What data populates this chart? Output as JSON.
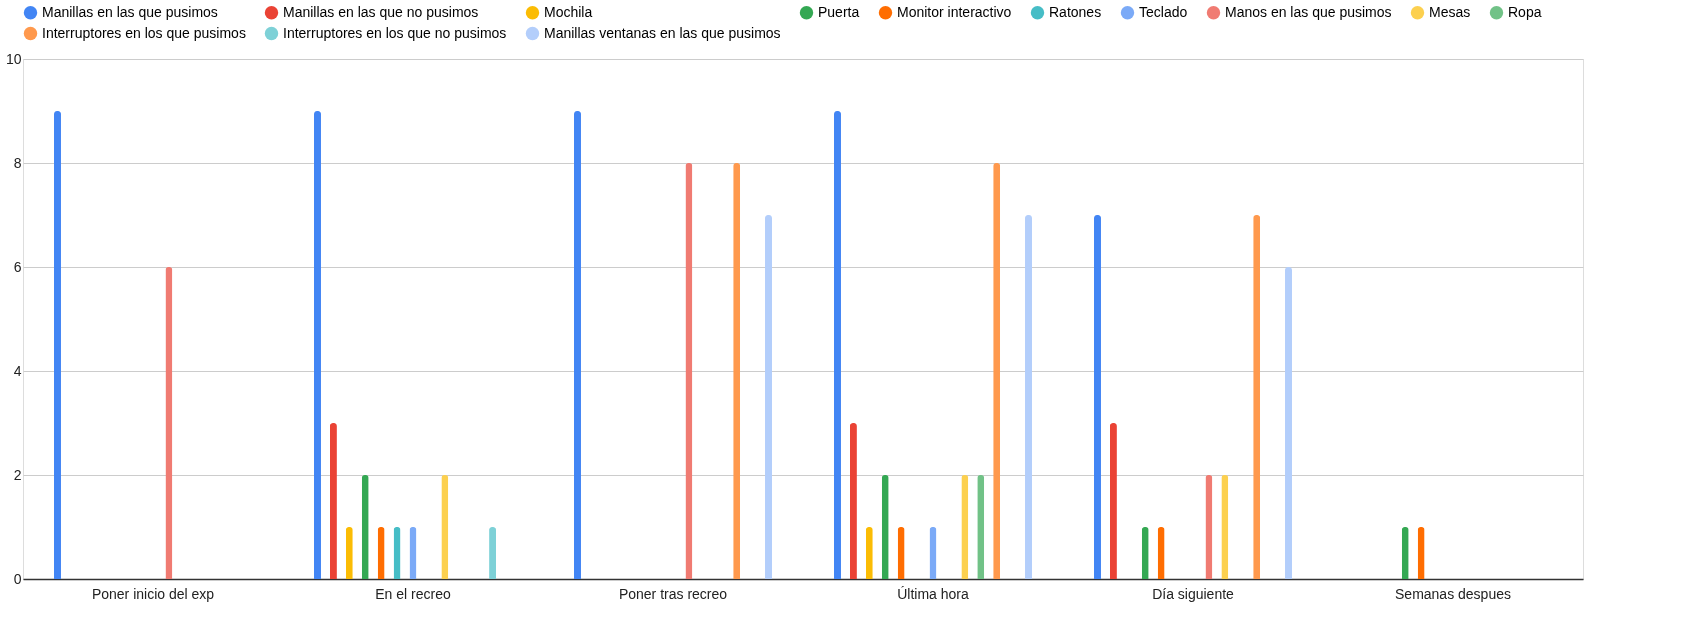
{
  "chart_data": {
    "type": "bar",
    "categories": [
      "Poner inicio del exp",
      "En el recreo",
      "Poner tras recreo",
      "Última hora",
      "Día siguiente",
      "Semanas despues"
    ],
    "series": [
      {
        "name": "Manillas en las que pusimos",
        "color": "#4285f4",
        "values": [
          9,
          9,
          9,
          9,
          7,
          0
        ]
      },
      {
        "name": "Manillas en las que no pusimos",
        "color": "#ea4335",
        "values": [
          0,
          3,
          0,
          3,
          3,
          0
        ]
      },
      {
        "name": "Mochila",
        "color": "#fbbc04",
        "values": [
          0,
          1,
          0,
          1,
          0,
          0
        ]
      },
      {
        "name": "Puerta",
        "color": "#34a853",
        "values": [
          0,
          2,
          0,
          2,
          1,
          1
        ]
      },
      {
        "name": "Monitor interactivo",
        "color": "#ff6d01",
        "values": [
          0,
          1,
          0,
          1,
          1,
          1
        ]
      },
      {
        "name": "Ratones",
        "color": "#46bdc6",
        "values": [
          0,
          1,
          0,
          0,
          0,
          0
        ]
      },
      {
        "name": "Teclado",
        "color": "#7baaf7",
        "values": [
          0,
          1,
          0,
          1,
          0,
          0
        ]
      },
      {
        "name": "Manos en las que pusimos",
        "color": "#f07b72",
        "values": [
          6,
          0,
          8,
          0,
          2,
          0
        ]
      },
      {
        "name": "Mesas",
        "color": "#fcd04f",
        "values": [
          0,
          2,
          0,
          2,
          2,
          0
        ]
      },
      {
        "name": "Ropa",
        "color": "#71c287",
        "values": [
          0,
          0,
          0,
          2,
          0,
          0
        ]
      },
      {
        "name": "Interruptores en los que pusimos",
        "color": "#ff994d",
        "values": [
          0,
          0,
          8,
          8,
          7,
          0
        ]
      },
      {
        "name": "Interruptores en los que no pusimos",
        "color": "#7ed1d7",
        "values": [
          0,
          1,
          0,
          0,
          0,
          0
        ]
      },
      {
        "name": "Manillas ventanas en las que pusimos",
        "color": "#b3cefb",
        "values": [
          0,
          0,
          7,
          7,
          6,
          0
        ]
      }
    ],
    "ylim": [
      0,
      10
    ],
    "yticks": [
      0,
      2,
      4,
      6,
      8,
      10
    ],
    "grid": "y",
    "legend": "top"
  }
}
